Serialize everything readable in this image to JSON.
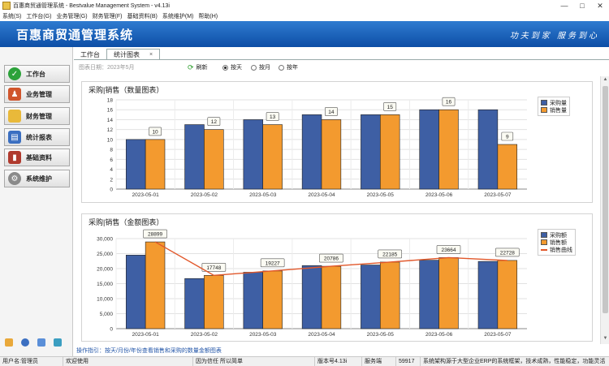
{
  "window": {
    "title": "百惠商贸通管理系统 - Bestvalue Management System - v4.13i",
    "controls": [
      "—",
      "□",
      "✕"
    ]
  },
  "menu": [
    "系统(S)",
    "工作台(G)",
    "业务管理(G)",
    "财务管理(F)",
    "基础资料(B)",
    "系统维护(M)",
    "帮助(H)"
  ],
  "banner": {
    "title": "百惠商贸通管理系统",
    "slogan": "功夫到家 服务到心"
  },
  "sidebar": {
    "items": [
      {
        "label": "工作台",
        "icon": "check-icon",
        "color": "#2ca23a"
      },
      {
        "label": "业务管理",
        "icon": "people-icon",
        "color": "#d0552c"
      },
      {
        "label": "财务管理",
        "icon": "folder-icon",
        "color": "#e9b93a"
      },
      {
        "label": "统计报表",
        "icon": "report-icon",
        "color": "#3b6fc1"
      },
      {
        "label": "基础资料",
        "icon": "book-icon",
        "color": "#b03a2e"
      },
      {
        "label": "系统维护",
        "icon": "gear-icon",
        "color": "#8a8a8a"
      }
    ]
  },
  "tabs": [
    {
      "label": "工作台",
      "active": false
    },
    {
      "label": "统计图表",
      "active": true,
      "close": "×"
    }
  ],
  "toolbar": {
    "date": "图表日期：2023年5月",
    "refresh": "刷新",
    "options": [
      {
        "label": "按天",
        "checked": true
      },
      {
        "label": "按月",
        "checked": false
      },
      {
        "label": "按年",
        "checked": false
      }
    ]
  },
  "colors": {
    "blue": "#3e5fa4",
    "orange": "#f39a2f",
    "line": "#e1572a"
  },
  "hint": "操作指引：按天/月份/年份查看销售和采购的数量金额图表",
  "status": [
    "用户名:管理员",
    "欢迎使用",
    "因为信任 所以简单",
    "版本号4.13i",
    "服务端",
    "59917",
    "系统架构源于大型企业ERP的系统框架，技术成熟，性能稳定，功能灵活"
  ],
  "chart_data": [
    {
      "type": "bar",
      "title": "采购|销售（数量图表）",
      "categories": [
        "2023-05-01",
        "2023-05-02",
        "2023-05-03",
        "2023-05-04",
        "2023-05-05",
        "2023-05-06",
        "2023-05-07"
      ],
      "series": [
        {
          "name": "采购量",
          "values": [
            10,
            13,
            14,
            15,
            15,
            16,
            16
          ]
        },
        {
          "name": "销售量",
          "values": [
            10,
            12,
            13,
            14,
            15,
            16,
            9
          ],
          "labels": [
            "10",
            "12",
            "13",
            "14",
            "15",
            "16",
            "9"
          ]
        }
      ],
      "ylim": [
        0,
        18
      ],
      "yticks": [
        "0",
        "2",
        "4",
        "6",
        "8",
        "10",
        "12",
        "14",
        "16",
        "18"
      ],
      "grid": true,
      "legend": "top-right"
    },
    {
      "type": "bar",
      "title": "采购|销售（金额图表）",
      "categories": [
        "2023-05-01",
        "2023-05-02",
        "2023-05-03",
        "2023-05-04",
        "2023-05-05",
        "2023-05-06",
        "2023-05-07"
      ],
      "series": [
        {
          "name": "采购额",
          "values": [
            24500,
            16700,
            18800,
            21000,
            21200,
            22800,
            22400
          ]
        },
        {
          "name": "销售额",
          "values": [
            28899,
            17748,
            19227,
            20786,
            22185,
            23664,
            22728
          ],
          "labels": [
            "28899",
            "17748",
            "19227",
            "20786",
            "22185",
            "23664",
            "22728"
          ]
        },
        {
          "name": "销售曲线",
          "type": "line",
          "values": [
            28899,
            17748,
            19227,
            20786,
            22185,
            23664,
            22728
          ]
        }
      ],
      "ylim": [
        0,
        30000
      ],
      "yticks": [
        "0",
        "5,000",
        "10,000",
        "15,000",
        "20,000",
        "25,000",
        "30,000"
      ],
      "grid": true,
      "legend": "top-right"
    }
  ]
}
